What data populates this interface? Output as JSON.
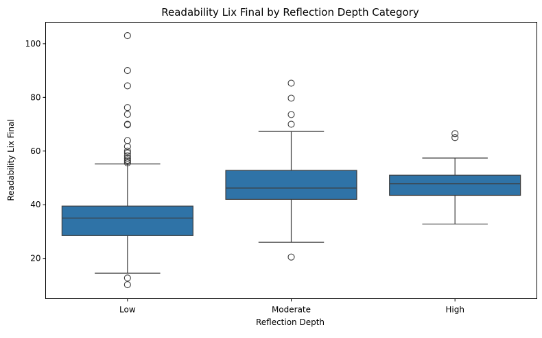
{
  "chart_data": {
    "type": "box",
    "title": "Readability Lix Final by Reflection Depth Category",
    "xlabel": "Reflection Depth",
    "ylabel": "Readability Lix Final",
    "ylim": [
      5,
      108
    ],
    "yticks": [
      20,
      40,
      60,
      80,
      100
    ],
    "grid": false,
    "box_color": "#2f73a7",
    "line_color": "#3d3d3d",
    "categories": [
      "Low",
      "Moderate",
      "High"
    ],
    "boxes": [
      {
        "category": "Low",
        "whisker_low": 14.5,
        "q1": 28.5,
        "median": 35.0,
        "q3": 39.5,
        "whisker_high": 55.2,
        "outliers": [
          103.0,
          90.0,
          84.3,
          76.2,
          73.7,
          70.0,
          69.8,
          63.9,
          61.7,
          60.0,
          59.3,
          58.2,
          57.3,
          56.6,
          56.1,
          55.6,
          12.7,
          10.2
        ]
      },
      {
        "category": "Moderate",
        "whisker_low": 26.0,
        "q1": 42.0,
        "median": 46.2,
        "q3": 52.8,
        "whisker_high": 67.3,
        "outliers": [
          85.3,
          79.7,
          73.6,
          70.0,
          20.5
        ]
      },
      {
        "category": "High",
        "whisker_low": 32.8,
        "q1": 43.5,
        "median": 47.8,
        "q3": 51.0,
        "whisker_high": 57.4,
        "outliers": [
          66.5,
          65.0
        ]
      }
    ]
  }
}
